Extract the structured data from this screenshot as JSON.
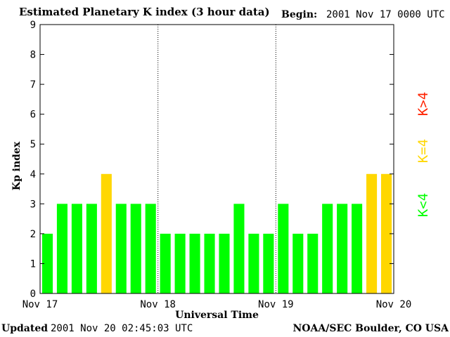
{
  "header": {
    "title": "Estimated Planetary K index (3 hour data)",
    "begin_label": "Begin:",
    "begin_value": "2001 Nov 17 0000 UTC"
  },
  "footer": {
    "updated_label": "Updated",
    "updated_value": "2001 Nov 20 02:45:03 UTC",
    "credit": "NOAA/SEC Boulder, CO USA"
  },
  "legend": [
    {
      "label": "K<4",
      "color": "#00ff00"
    },
    {
      "label": "K=4",
      "color": "#ffd700"
    },
    {
      "label": "K>4",
      "color": "#ff2200"
    }
  ],
  "chart_data": {
    "type": "bar",
    "title": "Estimated Planetary K index (3 hour data)",
    "xlabel": "Universal Time",
    "ylabel": "Kp index",
    "ylim": [
      0,
      9
    ],
    "yticks": [
      0,
      1,
      2,
      3,
      4,
      5,
      6,
      7,
      8,
      9
    ],
    "x_tick_labels": [
      "Nov 17",
      "Nov 18",
      "Nov 19",
      "Nov 20"
    ],
    "day_separators": [
      "Nov 18",
      "Nov 19"
    ],
    "values": [
      2,
      3,
      3,
      3,
      4,
      3,
      3,
      3,
      2,
      2,
      2,
      2,
      2,
      3,
      2,
      2,
      3,
      2,
      2,
      3,
      3,
      3,
      4,
      4
    ],
    "colors": {
      "low": "#00ff00",
      "equal": "#ffd700",
      "high": "#ff2200"
    }
  }
}
